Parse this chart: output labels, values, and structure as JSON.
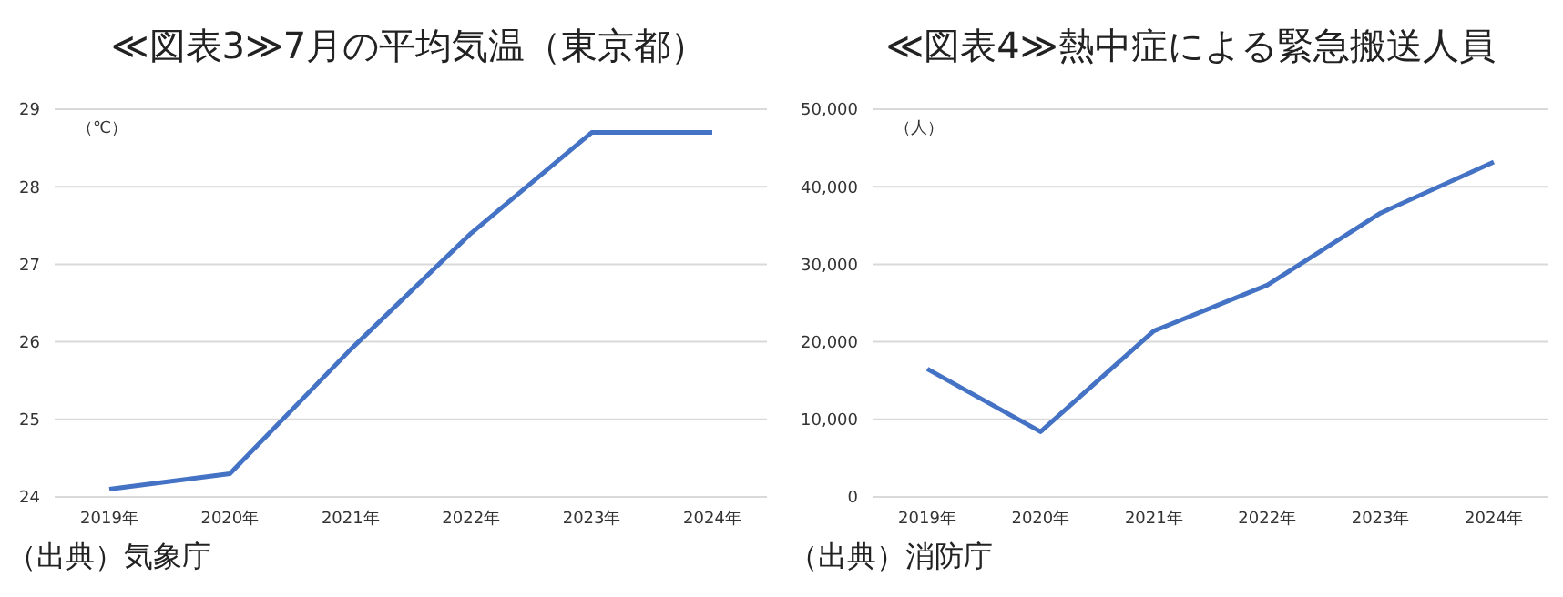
{
  "chart_data": [
    {
      "type": "line",
      "title": "≪図表3≫7月の平均気温（東京都）",
      "ylabel": "（℃）",
      "categories": [
        "2019年",
        "2020年",
        "2021年",
        "2022年",
        "2023年",
        "2024年"
      ],
      "series": [
        {
          "color": "#4472c4",
          "values": [
            24.1,
            24.3,
            25.9,
            27.4,
            28.7,
            28.7
          ]
        }
      ],
      "ylim": [
        24,
        29
      ],
      "yticks": [
        24,
        25,
        26,
        27,
        28,
        29
      ],
      "grid": "y",
      "legend": false,
      "marker": "none",
      "line_style": "solid",
      "annotations": [
        "（出典）気象庁"
      ]
    },
    {
      "type": "line",
      "title": "≪図表4≫熱中症による緊急搬送人員",
      "ylabel": "（人）",
      "categories": [
        "2019年",
        "2020年",
        "2021年",
        "2022年",
        "2023年",
        "2024年"
      ],
      "series": [
        {
          "color": "#4472c4",
          "values": [
            16500,
            8400,
            21400,
            27300,
            36600,
            43200
          ]
        }
      ],
      "ylim": [
        0,
        50000
      ],
      "yticks": [
        {
          "value": 0,
          "label": "0"
        },
        {
          "value": 10000,
          "label": "10,000"
        },
        {
          "value": 20000,
          "label": "20,000"
        },
        {
          "value": 30000,
          "label": "30,000"
        },
        {
          "value": 40000,
          "label": "40,000"
        },
        {
          "value": 50000,
          "label": "50,000"
        }
      ],
      "grid": "y",
      "legend": false,
      "marker": "none",
      "line_style": "solid",
      "annotations": [
        "（出典）消防庁"
      ]
    }
  ]
}
